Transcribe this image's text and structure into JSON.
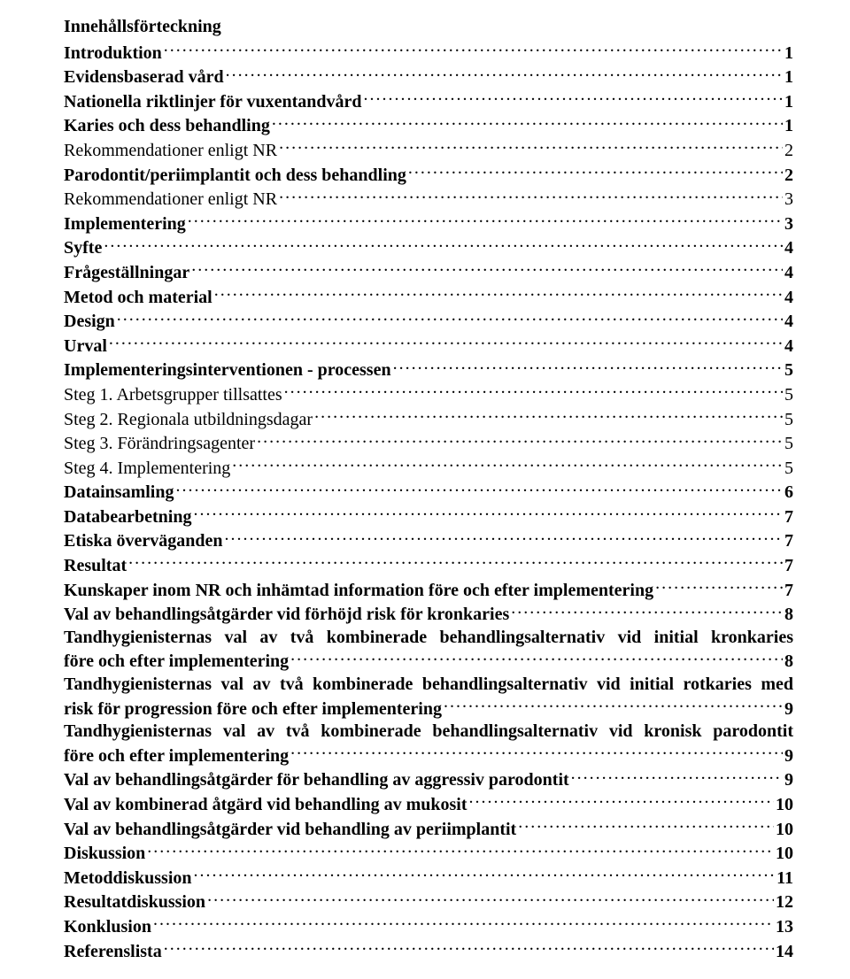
{
  "title": "Innehållsförteckning",
  "entries": [
    {
      "label": "Introduktion",
      "page": "1",
      "bold": true
    },
    {
      "label": "Evidensbaserad vård",
      "page": "1",
      "bold": true
    },
    {
      "label": "Nationella riktlinjer för vuxentandvård",
      "page": "1",
      "bold": true
    },
    {
      "label": "Karies och dess behandling",
      "page": "1",
      "bold": true
    },
    {
      "label": "Rekommendationer enligt NR",
      "page": "2",
      "bold": false
    },
    {
      "label": "Parodontit/periimplantit och dess behandling",
      "page": "2",
      "bold": true
    },
    {
      "label": "Rekommendationer enligt NR",
      "page": "3",
      "bold": false
    },
    {
      "label": "Implementering",
      "page": "3",
      "bold": true
    },
    {
      "label": "Syfte",
      "page": "4",
      "bold": true
    },
    {
      "label": "Frågeställningar",
      "page": "4",
      "bold": true
    },
    {
      "label": "Metod och material",
      "page": "4",
      "bold": true
    },
    {
      "label": "Design",
      "page": "4",
      "bold": true
    },
    {
      "label": "Urval",
      "page": "4",
      "bold": true
    },
    {
      "label": "Implementeringsinterventionen - processen",
      "page": "5",
      "bold": true
    },
    {
      "label": "Steg 1. Arbetsgrupper tillsattes",
      "page": "5",
      "bold": false
    },
    {
      "label": "Steg 2. Regionala utbildningsdagar",
      "page": "5",
      "bold": false
    },
    {
      "label": "Steg 3. Förändringsagenter",
      "page": "5",
      "bold": false
    },
    {
      "label": "Steg 4. Implementering",
      "page": "5",
      "bold": false
    },
    {
      "label": "Datainsamling",
      "page": "6",
      "bold": true
    },
    {
      "label": "Databearbetning",
      "page": "7",
      "bold": true
    },
    {
      "label": "Etiska överväganden",
      "page": "7",
      "bold": true
    },
    {
      "label": "Resultat",
      "page": "7",
      "bold": true
    },
    {
      "label": "Kunskaper inom NR och inhämtad information före och efter implementering",
      "page": "7",
      "bold": true
    },
    {
      "label": "Val av behandlingsåtgärder vid förhöjd risk för kronkaries",
      "page": "8",
      "bold": true
    },
    {
      "wrap": true,
      "bold": true,
      "line1": "Tandhygienisternas val av två kombinerade behandlingsalternativ vid initial kronkaries",
      "tail": "före och efter implementering",
      "page": "8"
    },
    {
      "wrap": true,
      "bold": true,
      "line1": "Tandhygienisternas val av två kombinerade behandlingsalternativ vid initial rotkaries med",
      "tail": "risk för progression före och efter implementering",
      "page": "9"
    },
    {
      "wrap": true,
      "bold": true,
      "line1": "Tandhygienisternas val av två kombinerade behandlingsalternativ vid kronisk parodontit",
      "tail": "före och efter implementering",
      "page": "9"
    },
    {
      "label": "Val av behandlingsåtgärder för behandling av aggressiv parodontit",
      "page": "9",
      "bold": true
    },
    {
      "label": "Val av kombinerad åtgärd vid behandling av mukosit",
      "page": "10",
      "bold": true
    },
    {
      "label": "Val av behandlingsåtgärder vid behandling av periimplantit",
      "page": "10",
      "bold": true
    },
    {
      "label": "Diskussion",
      "page": "10",
      "bold": true
    },
    {
      "label": "Metoddiskussion",
      "page": "11",
      "bold": true
    },
    {
      "label": "Resultatdiskussion",
      "page": "12",
      "bold": true
    },
    {
      "label": "Konklusion",
      "page": "13",
      "bold": true
    },
    {
      "label": "Referenslista",
      "page": "14",
      "bold": true
    }
  ]
}
